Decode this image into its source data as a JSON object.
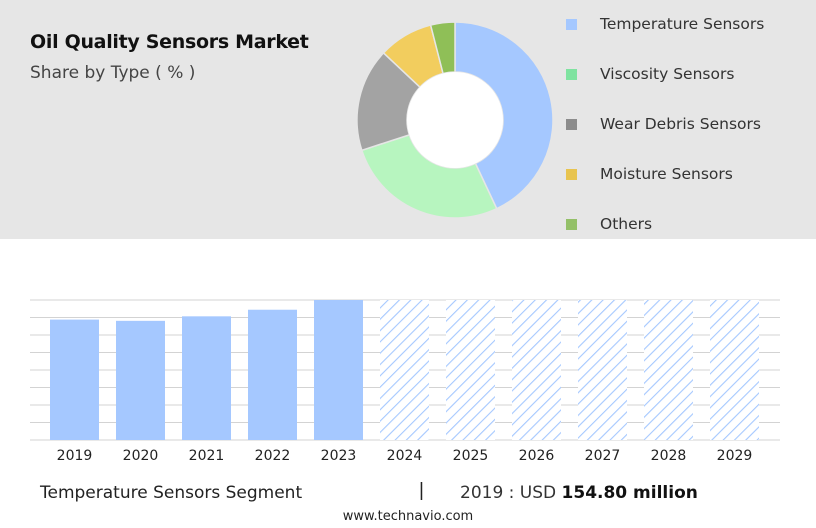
{
  "title": "Oil Quality Sensors Market",
  "subtitle": "Share by Type ( % )",
  "chart_data": [
    {
      "type": "pie",
      "donut": true,
      "title": "Oil Quality Sensors Market",
      "subtitle": "Share by Type ( % )",
      "categories": [
        "Temperature Sensors",
        "Viscosity Sensors",
        "Wear Debris Sensors",
        "Moisture Sensors",
        "Others"
      ],
      "values": [
        43,
        27,
        17,
        9,
        4
      ],
      "colors": [
        "#a5c8ff",
        "#b7f5bf",
        "#a3a3a3",
        "#f2cd5e",
        "#8fbf57"
      ],
      "legend_colors": [
        "#a5c8ff",
        "#7fe3a0",
        "#8c8c8c",
        "#e8c44f",
        "#94c068"
      ],
      "legend_position": "right"
    },
    {
      "type": "bar",
      "categories": [
        "2019",
        "2020",
        "2021",
        "2022",
        "2023",
        "2024",
        "2025",
        "2026",
        "2027",
        "2028",
        "2029"
      ],
      "values": [
        154.8,
        153.2,
        159.0,
        167.5,
        180.0,
        null,
        null,
        null,
        null,
        null,
        null
      ],
      "forecast_start": "2024",
      "ylim": [
        0,
        180
      ],
      "grid": true,
      "color": "#a5c8ff",
      "forecast_color": "#a5c8ff"
    }
  ],
  "footer": {
    "segment": "Temperature Sensors Segment",
    "separator": "|",
    "year_label": "2019 : USD",
    "value": "154.80 million"
  },
  "source": "www.technavio.com"
}
